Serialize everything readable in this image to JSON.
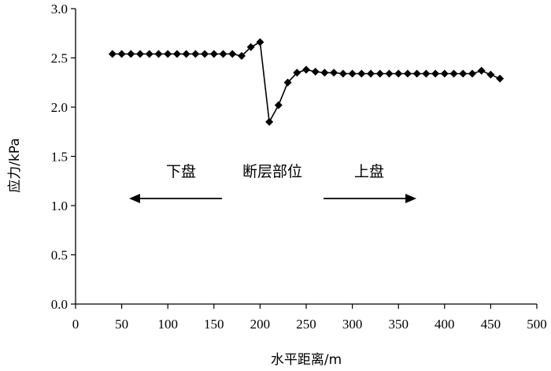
{
  "chart_data": {
    "type": "line",
    "xlabel": "水平距离/m",
    "ylabel": "应力/kPa",
    "xlim": [
      0,
      500
    ],
    "ylim": [
      0,
      3.0
    ],
    "xticks": [
      0,
      50,
      100,
      150,
      200,
      250,
      300,
      350,
      400,
      450,
      500
    ],
    "yticks": [
      0,
      0.5,
      1.0,
      1.5,
      2.0,
      2.5,
      3.0
    ],
    "xtick_labels": [
      "0",
      "50",
      "100",
      "150",
      "200",
      "250",
      "300",
      "350",
      "400",
      "450",
      "500"
    ],
    "ytick_labels": [
      "0.0",
      "0.5",
      "1.0",
      "1.5",
      "2.0",
      "2.5",
      "3.0"
    ],
    "grid": false,
    "marker": "diamond",
    "color": "#000000",
    "series": [
      {
        "x": [
          40,
          50,
          60,
          70,
          80,
          90,
          100,
          110,
          120,
          130,
          140,
          150,
          160,
          170,
          180,
          190,
          200,
          210,
          220,
          230,
          240,
          250,
          260,
          270,
          280,
          290,
          300,
          310,
          320,
          330,
          340,
          350,
          360,
          370,
          380,
          390,
          400,
          410,
          420,
          430,
          440,
          450,
          460
        ],
        "values": [
          2.54,
          2.54,
          2.54,
          2.54,
          2.54,
          2.54,
          2.54,
          2.54,
          2.54,
          2.54,
          2.54,
          2.54,
          2.54,
          2.54,
          2.52,
          2.61,
          2.66,
          1.85,
          2.02,
          2.25,
          2.35,
          2.38,
          2.36,
          2.35,
          2.35,
          2.34,
          2.34,
          2.34,
          2.34,
          2.34,
          2.34,
          2.34,
          2.34,
          2.34,
          2.34,
          2.34,
          2.34,
          2.34,
          2.34,
          2.34,
          2.37,
          2.33,
          2.29
        ]
      }
    ],
    "annotations": [
      {
        "text": "下盘",
        "arrow": "left"
      },
      {
        "text": "断层部位"
      },
      {
        "text": "上盘",
        "arrow": "right"
      }
    ]
  }
}
